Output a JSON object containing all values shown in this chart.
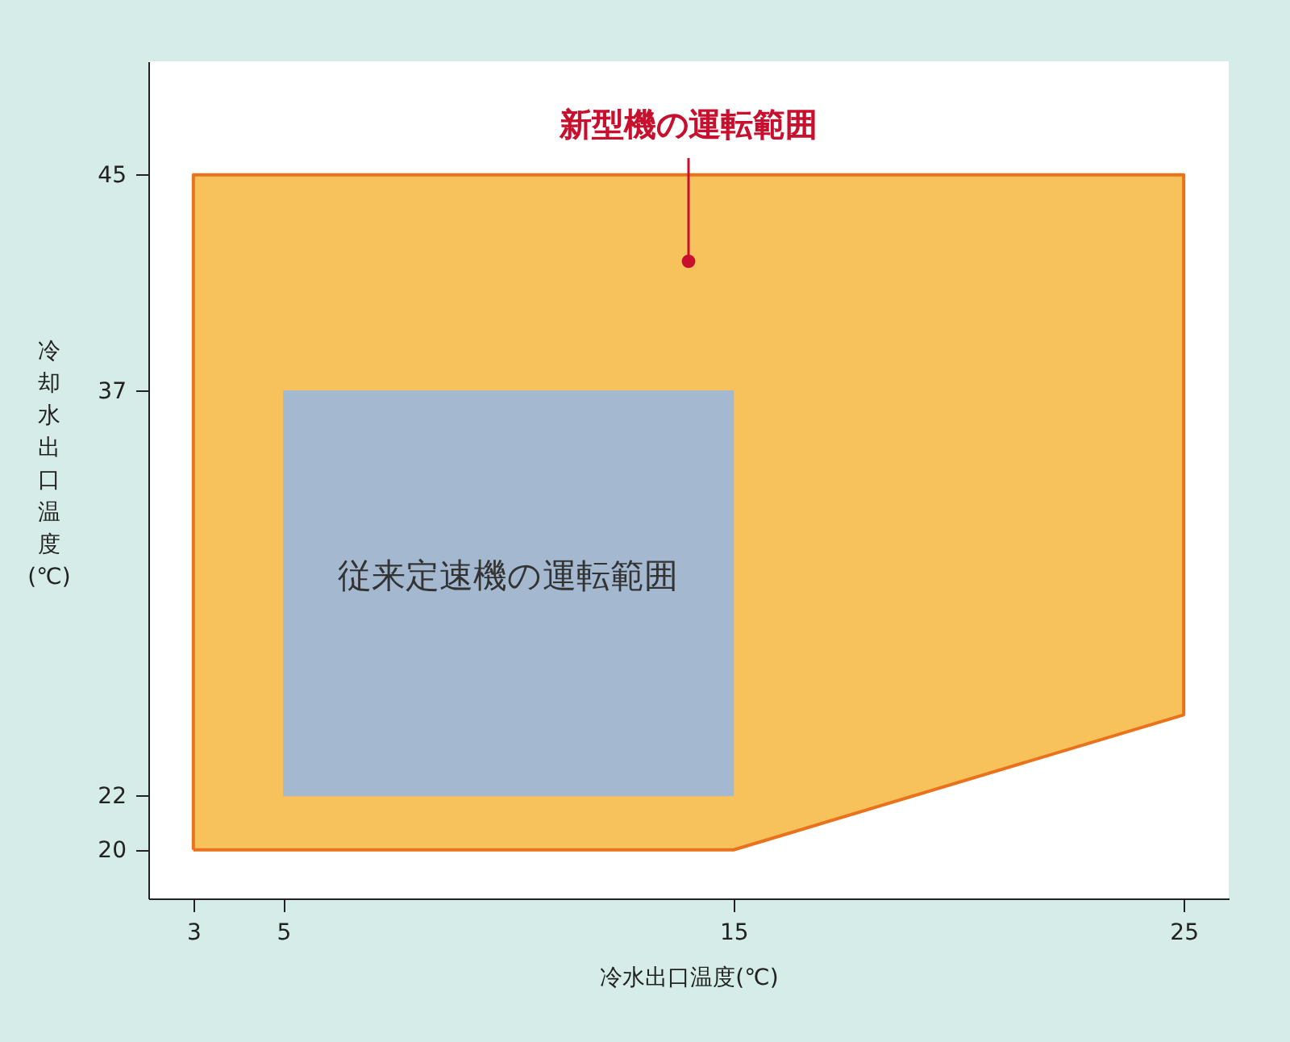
{
  "chart_data": {
    "type": "area",
    "xlabel": "冷水出口温度(℃)",
    "ylabel": "冷却水出口温度(℃)",
    "series": [
      {
        "name": "新型機の運転範囲",
        "color": "#f7c15c",
        "x": [
          3,
          15,
          25,
          25,
          3,
          3
        ],
        "values": [
          20,
          20,
          25,
          45,
          45,
          20
        ]
      },
      {
        "name": "従来定速機の運転範囲",
        "color": "#a4b8d0",
        "x": [
          5,
          15,
          15,
          5,
          5
        ],
        "values": [
          22,
          22,
          37,
          37,
          22
        ]
      }
    ],
    "xlim": [
      2,
      26
    ],
    "xticks": [
      3,
      5,
      15,
      25
    ],
    "ylim": [
      18.2,
      49.2
    ],
    "yticks": [
      20,
      22,
      37,
      45
    ],
    "grid": false
  }
}
